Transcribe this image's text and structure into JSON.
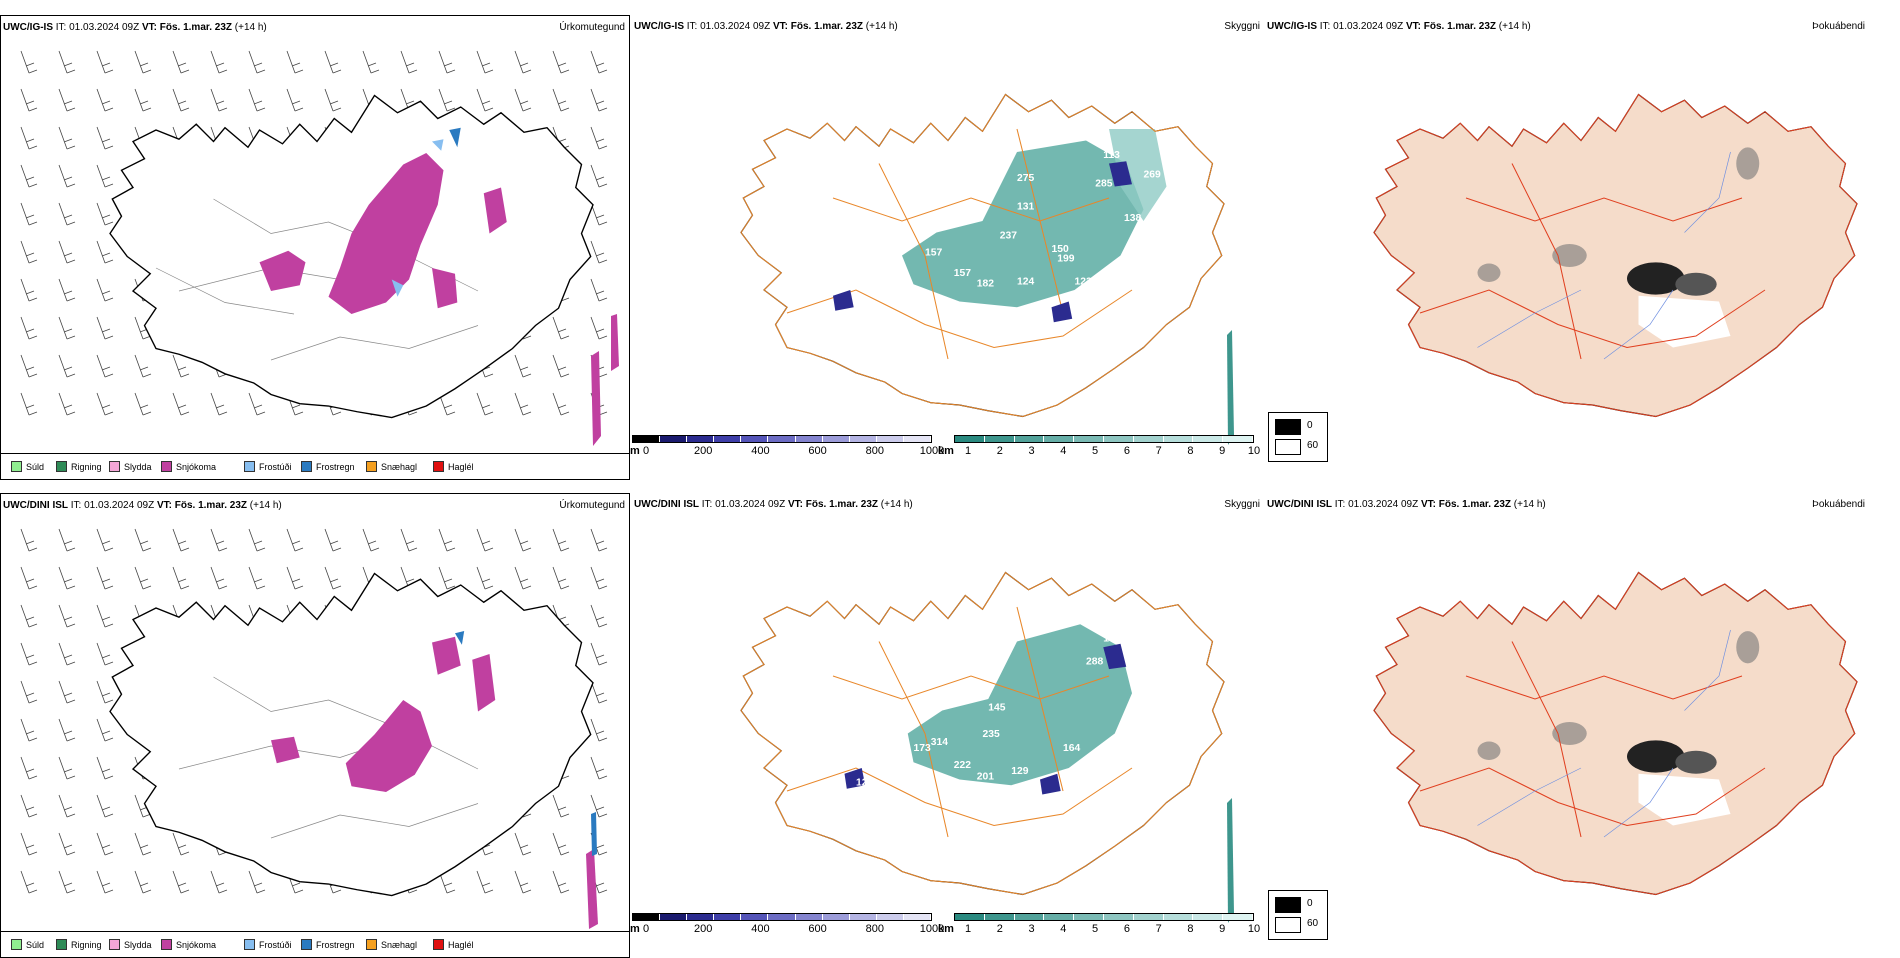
{
  "rows": [
    {
      "model": "UWC/IG-IS",
      "it_label": "IT:",
      "it_value": "01.03.2024 09Z",
      "vt_label": "VT:",
      "vt_value": "Fös. 1.mar. 23Z",
      "lead": "(+14 h)",
      "precip_title": "Úrkomutegund",
      "vis_title": "Skyggni",
      "fog_title": "Þokuábendi",
      "cloud_labels": [
        "359",
        "113",
        "275",
        "285",
        "269",
        "138",
        "131",
        "237",
        "199",
        "128",
        "157",
        "157",
        "182",
        "124",
        "150",
        "123",
        "138",
        "71"
      ]
    },
    {
      "model": "UWC/DINI ISL",
      "it_label": "IT:",
      "it_value": "01.03.2024 09Z",
      "vt_label": "VT:",
      "vt_value": "Fös. 1.mar. 23Z",
      "lead": "(+14 h)",
      "precip_title": "Úrkomutegund",
      "vis_title": "Skyggni",
      "fog_title": "Þokuábendi",
      "cloud_labels": [
        "101",
        "288",
        "187",
        "104",
        "71",
        "145",
        "235",
        "173",
        "314",
        "222",
        "201",
        "129",
        "164",
        "292",
        "184",
        "129",
        "107"
      ]
    }
  ],
  "precip_legend": [
    {
      "label": "Súld",
      "color": "#90EE90"
    },
    {
      "label": "Rigning",
      "color": "#2E8B57"
    },
    {
      "label": "Slydda",
      "color": "#F4A6D7"
    },
    {
      "label": "Snjókoma",
      "color": "#C040A0"
    },
    {
      "label": "Frostúði",
      "color": "#87BEF0"
    },
    {
      "label": "Frostregn",
      "color": "#2A7AC0"
    },
    {
      "label": "Snæhagl",
      "color": "#F5A020"
    },
    {
      "label": "Haglél",
      "color": "#E01010"
    }
  ],
  "cloud_base_scale": {
    "unit": "m",
    "ticks": [
      "0",
      "200",
      "400",
      "600",
      "800",
      "1000"
    ],
    "colors": [
      "#000000",
      "#1a1a6e",
      "#2b2b8f",
      "#3e3ea8",
      "#5454b8",
      "#6c6cc4",
      "#8484cf",
      "#9c9cd9",
      "#b4b4e3",
      "#ccccec",
      "#e4e4f5"
    ]
  },
  "visibility_scale": {
    "unit": "km",
    "ticks": [
      "1",
      "2",
      "3",
      "4",
      "5",
      "6",
      "7",
      "8",
      "9",
      "10"
    ],
    "colors": [
      "#2a8a80",
      "#3e968d",
      "#52a29a",
      "#66aea7",
      "#7abab4",
      "#8ec6c1",
      "#a2d2ce",
      "#b6dedb",
      "#cae9e7",
      "#def4f2"
    ]
  },
  "fog_scale": {
    "items": [
      {
        "value": "0",
        "color": "#000000"
      },
      {
        "value": "60",
        "color": "#ffffff"
      }
    ]
  }
}
